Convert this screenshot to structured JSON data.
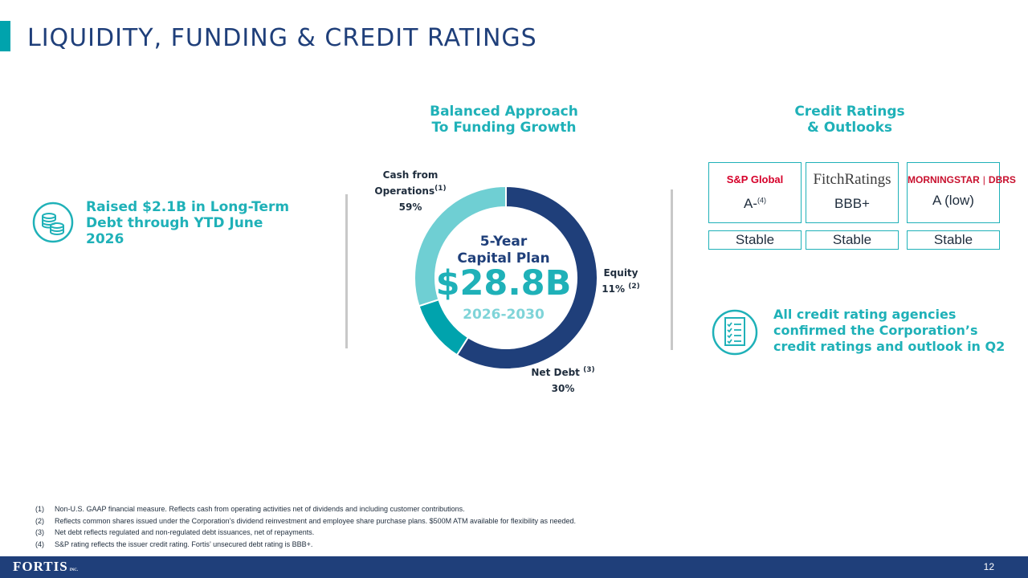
{
  "title": "LIQUIDITY, FUNDING & CREDIT RATINGS",
  "left": {
    "icon": "coins-icon",
    "text": "Raised $2.1B in Long-Term Debt through YTD June 2026"
  },
  "funding": {
    "heading_line1": "Balanced Approach",
    "heading_line2": "To Funding Growth",
    "plan_line1": "5-Year",
    "plan_line2": "Capital Plan",
    "plan_amount": "$28.8B",
    "plan_years": "2026-2030",
    "segments": [
      {
        "label_line1": "Cash from",
        "label_line2": "Operations",
        "note": "(1)",
        "value_text": "59%"
      },
      {
        "label_line1": "Equity",
        "note": "(2)",
        "value_text": "11%"
      },
      {
        "label_line1": "Net Debt",
        "note": "(3)",
        "value_text": "30%"
      }
    ]
  },
  "chart_data": {
    "type": "pie",
    "categories": [
      "Cash from Operations",
      "Equity",
      "Net Debt"
    ],
    "values": [
      59,
      11,
      30
    ],
    "colors": [
      "#1f3f7a",
      "#00a3ad",
      "#6fcfd3"
    ]
  },
  "ratings": {
    "heading_line1": "Credit Ratings",
    "heading_line2": "& Outlooks",
    "agencies": [
      {
        "logo_text": "S&P Global",
        "rating": "A-",
        "rating_note": "(4)",
        "outlook": "Stable"
      },
      {
        "logo_text": "FitchRatings",
        "rating": "BBB+",
        "outlook": "Stable"
      },
      {
        "logo_text_1": "MORNINGSTAR",
        "logo_text_2": "DBRS",
        "rating": "A (low)",
        "outlook": "Stable"
      }
    ],
    "confirm_icon": "checklist-icon",
    "confirm_text": "All credit rating agencies confirmed the Corporation’s credit ratings and outlook in Q2"
  },
  "footnotes": [
    {
      "num": "(1)",
      "text": "Non-U.S. GAAP financial measure. Reflects cash from operating activities net of dividends and including customer contributions."
    },
    {
      "num": "(2)",
      "text": "Reflects common shares issued under the Corporation’s dividend reinvestment and employee share purchase plans. $500M ATM available for flexibility as needed."
    },
    {
      "num": "(3)",
      "text": "Net debt reflects regulated and non-regulated debt issuances, net of repayments."
    },
    {
      "num": "(4)",
      "text": "S&P rating reflects the issuer credit rating. Fortis’ unsecured debt rating is BBB+."
    }
  ],
  "footer": {
    "logo": "FORTIS",
    "logo_suffix": "INC.",
    "page_number": "12"
  }
}
